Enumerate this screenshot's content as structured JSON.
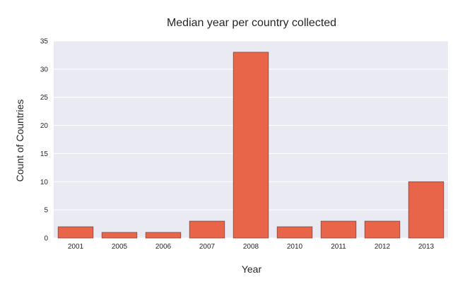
{
  "chart_data": {
    "type": "bar",
    "title": "Median year per country collected",
    "xlabel": "Year",
    "ylabel": "Count of Countries",
    "categories": [
      "2001",
      "2005",
      "2006",
      "2007",
      "2008",
      "2010",
      "2011",
      "2012",
      "2013"
    ],
    "values": [
      2,
      1,
      1,
      3,
      33,
      2,
      3,
      3,
      10
    ],
    "ylim": [
      0,
      35
    ],
    "yticks": [
      0,
      5,
      10,
      15,
      20,
      25,
      30,
      35
    ],
    "grid": true,
    "colors": {
      "bar": "#e8654a",
      "plot_bg": "#eaeaf2",
      "grid": "#ffffff"
    }
  }
}
